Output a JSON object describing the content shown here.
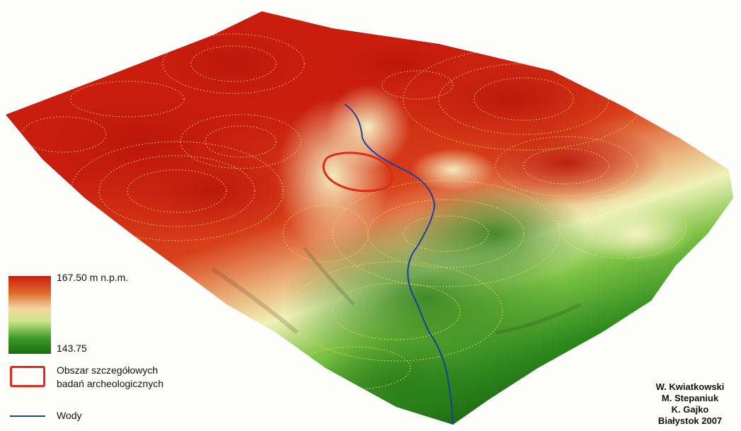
{
  "legend": {
    "max_label": "167.50 m n.p.m.",
    "min_label": "143.75",
    "study_area_label_line1": "Obszar szczegółowych",
    "study_area_label_line2": "badań archeologicznych",
    "water_label": "Wody",
    "ramp_colors": [
      "#c81e10",
      "#e06a2a",
      "#f2d6a2",
      "#cfe48a",
      "#3c9a28",
      "#1e6a14"
    ],
    "study_area_color": "#e02a1c",
    "water_color": "#1a3fa0"
  },
  "credits": {
    "line1": "W. Kwiatkowski",
    "line2": "M. Stepaniuk",
    "line3": "K. Gajko",
    "line4": "Białystok 2007"
  }
}
